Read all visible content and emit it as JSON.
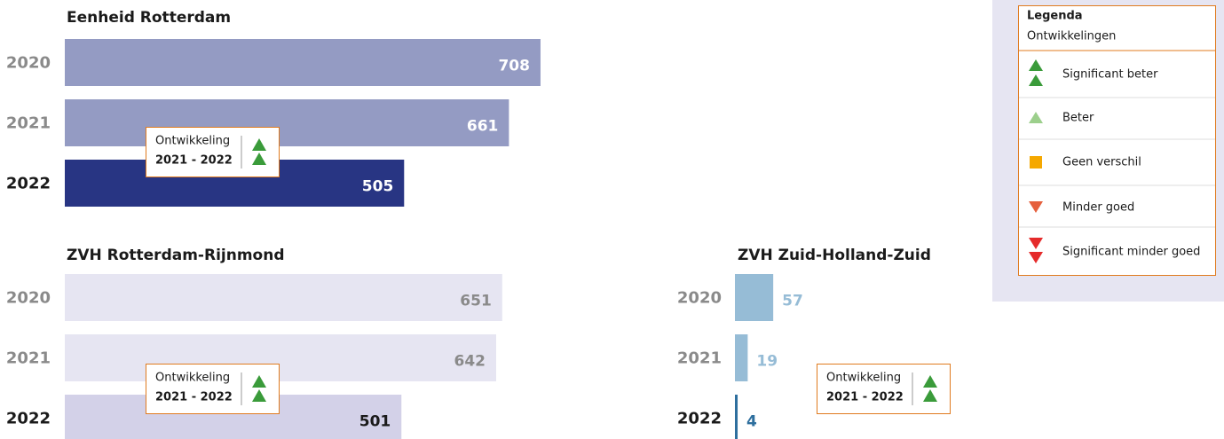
{
  "chart_data": [
    {
      "type": "bar",
      "title": "Eenheid Rotterdam",
      "categories": [
        "2020",
        "2021",
        "2022"
      ],
      "values": [
        708,
        661,
        505
      ],
      "colors": [
        "#949bc3",
        "#949bc3",
        "#283583"
      ],
      "annotation": {
        "label": "Ontwikkeling",
        "period": "2021 - 2022"
      }
    },
    {
      "type": "bar",
      "title": "ZVH Rotterdam-Rijnmond",
      "categories": [
        "2020",
        "2021",
        "2022"
      ],
      "values": [
        651,
        642,
        501
      ],
      "colors": [
        "#e6e5f2",
        "#e6e5f2",
        "#d3d1e8"
      ],
      "annotation": {
        "label": "Ontwikkeling",
        "period": "2021 - 2022"
      }
    },
    {
      "type": "bar",
      "title": "ZVH Zuid-Holland-Zuid",
      "categories": [
        "2020",
        "2021",
        "2022"
      ],
      "values": [
        57,
        19,
        4
      ],
      "colors": [
        "#96bcd6",
        "#96bcd6",
        "#2e6f9e"
      ],
      "annotation": {
        "label": "Ontwikkeling",
        "period": "2021 - 2022"
      }
    }
  ],
  "legend": {
    "title": "Legenda",
    "subtitle": "Ontwikkelingen",
    "items": [
      "Significant beter",
      "Beter",
      "Geen verschil",
      "Minder goed",
      "Significant minder goed"
    ]
  }
}
